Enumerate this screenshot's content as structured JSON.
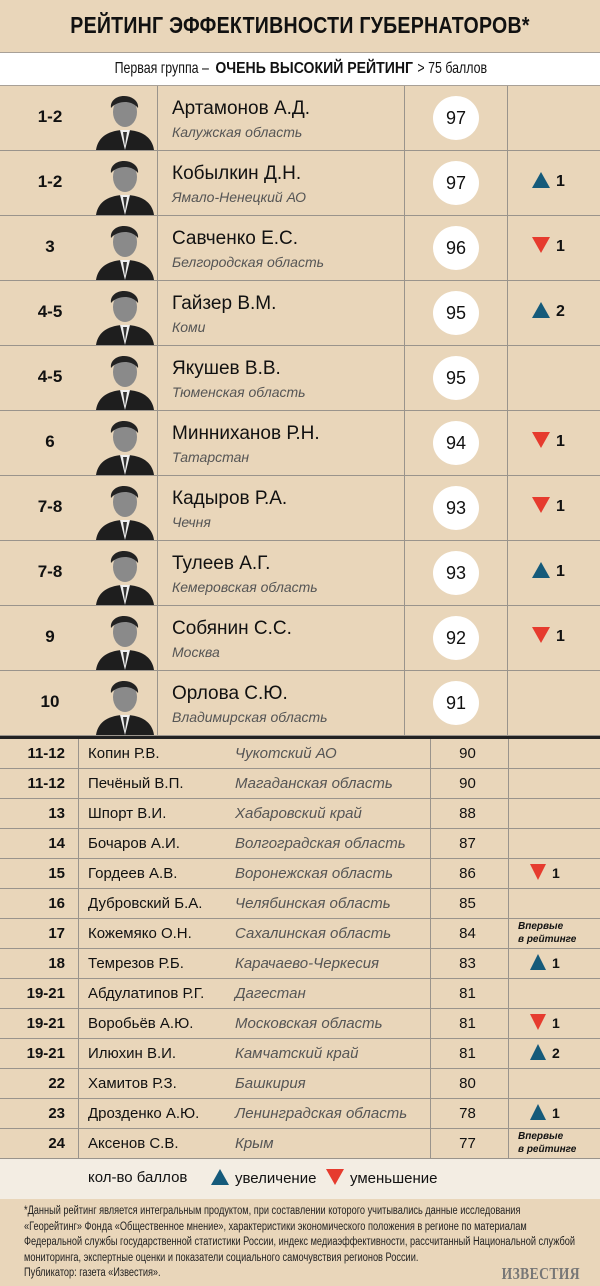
{
  "title": "РЕЙТИНГ ЭФФЕКТИВНОСТИ ГУБЕРНАТОРОВ*",
  "subtitle": {
    "prefix": "Первая группа – ",
    "bold": "ОЧЕНЬ ВЫСОКИЙ РЕЙТИНГ",
    "suffix": "> 75 баллов"
  },
  "colors": {
    "background": "#e9d6ba",
    "up": "#155a7a",
    "down": "#e63b2e"
  },
  "top": [
    {
      "rank": "1-2",
      "name": "Артамонов А.Д.",
      "region": "Калужская область",
      "score": "97",
      "change": ""
    },
    {
      "rank": "1-2",
      "name": "Кобылкин Д.Н.",
      "region": "Ямало-Ненецкий АО",
      "score": "97",
      "dir": "up",
      "change": "1"
    },
    {
      "rank": "3",
      "name": "Савченко Е.С.",
      "region": "Белгородская область",
      "score": "96",
      "dir": "down",
      "change": "1"
    },
    {
      "rank": "4-5",
      "name": "Гайзер В.М.",
      "region": "Коми",
      "score": "95",
      "dir": "up",
      "change": "2"
    },
    {
      "rank": "4-5",
      "name": "Якушев В.В.",
      "region": "Тюменская область",
      "score": "95",
      "change": ""
    },
    {
      "rank": "6",
      "name": "Минниханов Р.Н.",
      "region": "Татарстан",
      "score": "94",
      "dir": "down",
      "change": "1"
    },
    {
      "rank": "7-8",
      "name": "Кадыров Р.А.",
      "region": "Чечня",
      "score": "93",
      "dir": "down",
      "change": "1"
    },
    {
      "rank": "7-8",
      "name": "Тулеев А.Г.",
      "region": "Кемеровская область",
      "score": "93",
      "dir": "up",
      "change": "1"
    },
    {
      "rank": "9",
      "name": "Собянин С.С.",
      "region": "Москва",
      "score": "92",
      "dir": "down",
      "change": "1"
    },
    {
      "rank": "10",
      "name": "Орлова С.Ю.",
      "region": "Владимирская область",
      "score": "91",
      "change": ""
    }
  ],
  "bottom": [
    {
      "rank": "11-12",
      "name": "Копин Р.В.",
      "region": "Чукотский АО",
      "score": "90",
      "change": ""
    },
    {
      "rank": "11-12",
      "name": "Печёный В.П.",
      "region": "Магаданская область",
      "score": "90",
      "change": ""
    },
    {
      "rank": "13",
      "name": "Шпорт В.И.",
      "region": "Хабаровский край",
      "score": "88",
      "change": ""
    },
    {
      "rank": "14",
      "name": "Бочаров А.И.",
      "region": "Волгоградская область",
      "score": "87",
      "change": ""
    },
    {
      "rank": "15",
      "name": "Гордеев А.В.",
      "region": "Воронежская область",
      "score": "86",
      "dir": "down",
      "change": "1"
    },
    {
      "rank": "16",
      "name": "Дубровский Б.А.",
      "region": "Челябинская область",
      "score": "85",
      "change": ""
    },
    {
      "rank": "17",
      "name": "Кожемяко О.Н.",
      "region": "Сахалинская область",
      "score": "84",
      "new1": "Впервые",
      "new2": "в рейтинге"
    },
    {
      "rank": "18",
      "name": "Темрезов Р.Б.",
      "region": "Карачаево-Черкесия",
      "score": "83",
      "dir": "up",
      "change": "1"
    },
    {
      "rank": "19-21",
      "name": "Абдулатипов Р.Г.",
      "region": "Дагестан",
      "score": "81",
      "change": ""
    },
    {
      "rank": "19-21",
      "name": "Воробьёв А.Ю.",
      "region": "Московская область",
      "score": "81",
      "dir": "down",
      "change": "1"
    },
    {
      "rank": "19-21",
      "name": "Илюхин В.И.",
      "region": "Камчатский край",
      "score": "81",
      "dir": "up",
      "change": "2"
    },
    {
      "rank": "22",
      "name": "Хамитов Р.З.",
      "region": "Башкирия",
      "score": "80",
      "change": ""
    },
    {
      "rank": "23",
      "name": "Дрозденко А.Ю.",
      "region": "Ленинградская область",
      "score": "78",
      "dir": "up",
      "change": "1"
    },
    {
      "rank": "24",
      "name": "Аксенов С.В.",
      "region": "Крым",
      "score": "77",
      "new1": "Впервые",
      "new2": "в рейтинге"
    }
  ],
  "legend": {
    "score": "кол-во баллов",
    "up": "увеличение",
    "down": "уменьшение"
  },
  "footnote": "*Данный рейтинг является интегральным продуктом, при составлении которого учитывались данные исследования «Георейтинг» Фонда «Общественное мнение», характеристики экономического положения в регионе по материалам Федеральной службы государственной статистики России, индекс медиаэффективности, рассчитанный Национальной службой мониторинга, экспертные оценки и показатели социального самочувствия регионов России.",
  "publisher": "Публикатор: газета «Известия».",
  "logo": "ИЗВЕСТИЯ"
}
